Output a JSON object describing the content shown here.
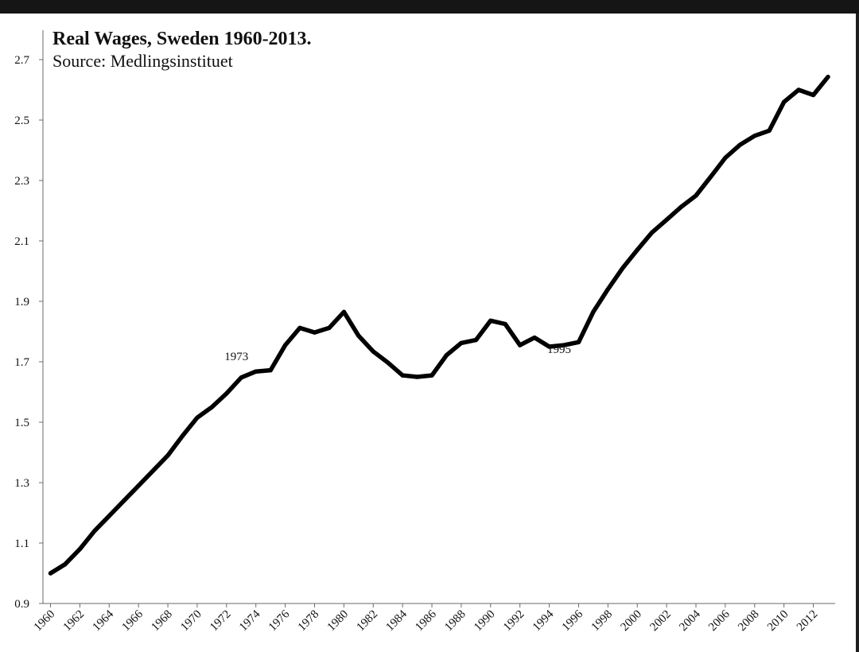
{
  "chart_data": {
    "type": "line",
    "title": "Real Wages, Sweden 1960-2013.",
    "subtitle": "Source: Medlingsinstituet",
    "xlabel": "",
    "ylabel": "",
    "ylim": [
      0.9,
      2.8
    ],
    "xlim": [
      1960,
      2013
    ],
    "y_ticks": [
      "0.9",
      "1.1",
      "1.3",
      "1.5",
      "1.7",
      "1.9",
      "2.1",
      "2.3",
      "2.5",
      "2.7"
    ],
    "x_ticks": [
      "1960",
      "1962",
      "1964",
      "1966",
      "1968",
      "1970",
      "1972",
      "1974",
      "1976",
      "1978",
      "1980",
      "1982",
      "1984",
      "1986",
      "1988",
      "1990",
      "1992",
      "1994",
      "1996",
      "1998",
      "2000",
      "2002",
      "2004",
      "2006",
      "2008",
      "2010",
      "2012"
    ],
    "grid": false,
    "legend": "none",
    "line_color": "#000000",
    "annotations": [
      {
        "text": "1973",
        "x": 1973,
        "y": 1.7,
        "position": "above"
      },
      {
        "text": "1995",
        "x": 1995,
        "y": 1.75,
        "position": "below"
      }
    ],
    "series": [
      {
        "x": [
          1960,
          1961,
          1962,
          1963,
          1964,
          1965,
          1966,
          1967,
          1968,
          1969,
          1970,
          1971,
          1972,
          1973,
          1974,
          1975,
          1976,
          1977,
          1978,
          1979,
          1980,
          1981,
          1982,
          1983,
          1984,
          1985,
          1986,
          1987,
          1988,
          1989,
          1990,
          1991,
          1992,
          1993,
          1994,
          1995,
          1996,
          1997,
          1998,
          1999,
          2000,
          2001,
          2002,
          2003,
          2004,
          2005,
          2006,
          2007,
          2008,
          2009,
          2010,
          2011,
          2012,
          2013
        ],
        "values": [
          1.0,
          1.03,
          1.08,
          1.14,
          1.19,
          1.24,
          1.29,
          1.34,
          1.39,
          1.455,
          1.515,
          1.55,
          1.595,
          1.648,
          1.668,
          1.672,
          1.755,
          1.812,
          1.797,
          1.812,
          1.865,
          1.786,
          1.734,
          1.697,
          1.655,
          1.65,
          1.655,
          1.722,
          1.762,
          1.772,
          1.836,
          1.825,
          1.755,
          1.78,
          1.75,
          1.755,
          1.765,
          1.865,
          1.94,
          2.01,
          2.07,
          2.128,
          2.17,
          2.213,
          2.25,
          2.312,
          2.375,
          2.418,
          2.448,
          2.465,
          2.56,
          2.6,
          2.583,
          2.643
        ]
      }
    ]
  }
}
